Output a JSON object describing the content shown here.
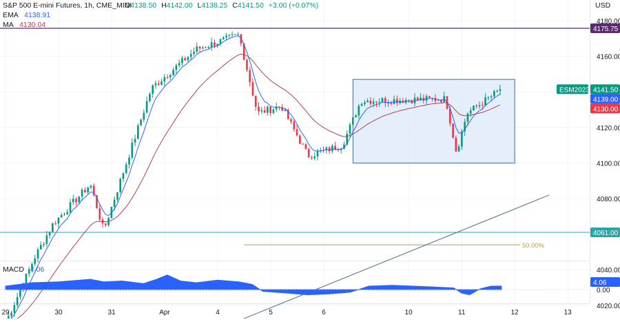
{
  "header": {
    "symbol": "S&P 500 E-mini Futures, 1h, CME_MINI",
    "ohlc": [
      {
        "label": "O",
        "value": "4138.50"
      },
      {
        "label": "H",
        "value": "4142.00"
      },
      {
        "label": "L",
        "value": "4138.25"
      },
      {
        "label": "C",
        "value": "4141.50"
      }
    ],
    "change": "+3.00 (+0.07%)",
    "ema_label": "EMA",
    "ema_value": "4138.91",
    "ma_label": "MA",
    "ma_value": "4130.04",
    "currency": "USD"
  },
  "colors": {
    "up": "#089981",
    "down": "#f23645",
    "ema": "#2962ff",
    "ma": "#b2404e",
    "macd": "#2962ff",
    "resistance": "#5b2a6e",
    "support": "#26a6a6",
    "fib": "#b99b50",
    "trendline": "#4a6f8a",
    "box_fill": "#dce9fa",
    "box_stroke": "#3d6c9e"
  },
  "chart_data": [
    {
      "type": "candlestick",
      "title": "S&P 500 E-mini Futures, 1h, CME_MINI",
      "ylabel": "USD",
      "ylim": [
        4010,
        4182
      ],
      "y_ticks": [
        "4180.00",
        "4160.00",
        "4140.00",
        "4120.00",
        "4100.00",
        "4080.00",
        "4060.00",
        "4040.00",
        "4020.00"
      ],
      "x_ticks": [
        "29",
        "30",
        "31",
        "Apr",
        "4",
        "5",
        "6",
        "10",
        "11",
        "12",
        "13"
      ],
      "segments": [
        {
          "from_day": 0,
          "to_day": 0.55,
          "from": 4010,
          "to": 4047
        },
        {
          "from_day": 0.55,
          "to_day": 0.9,
          "from": 4047,
          "to": 4066
        },
        {
          "from_day": 0.9,
          "to_day": 1.6,
          "from": 4066,
          "to": 4088
        },
        {
          "from_day": 1.6,
          "to_day": 1.85,
          "from": 4088,
          "to": 4062
        },
        {
          "from_day": 1.85,
          "to_day": 2.75,
          "from": 4062,
          "to": 4142
        },
        {
          "from_day": 2.75,
          "to_day": 3.6,
          "from": 4142,
          "to": 4164
        },
        {
          "from_day": 3.6,
          "to_day": 4.4,
          "from": 4164,
          "to": 4172
        },
        {
          "from_day": 4.4,
          "to_day": 4.75,
          "from": 4172,
          "to": 4128
        },
        {
          "from_day": 4.75,
          "to_day": 5.2,
          "from": 4128,
          "to": 4132
        },
        {
          "from_day": 5.2,
          "to_day": 5.7,
          "from": 4132,
          "to": 4104
        },
        {
          "from_day": 5.7,
          "to_day": 6.35,
          "from": 4104,
          "to": 4110
        },
        {
          "from_day": 6.35,
          "to_day": 6.7,
          "from": 4110,
          "to": 4135
        },
        {
          "from_day": 6.7,
          "to_day": 8.3,
          "from": 4135,
          "to": 4136
        },
        {
          "from_day": 8.3,
          "to_day": 8.5,
          "from": 4136,
          "to": 4106
        },
        {
          "from_day": 8.5,
          "to_day": 8.7,
          "from": 4106,
          "to": 4128
        },
        {
          "from_day": 8.7,
          "to_day": 9.35,
          "from": 4128,
          "to": 4141.5
        }
      ],
      "ema": {
        "name": "EMA",
        "current": 4138.91
      },
      "ma": {
        "name": "MA",
        "current": 4130.04
      },
      "levels": [
        {
          "name": "resistance",
          "value": 4175.75,
          "label": "4175.75"
        },
        {
          "name": "support",
          "value": 4061.0,
          "label": "4061.00"
        }
      ],
      "fib": {
        "value": 4054,
        "label": "50.00%",
        "from_day": 4.5,
        "to_day": 9.7
      },
      "trendline": {
        "from_day": 4.45,
        "from_value": 4012,
        "to_day": 10.25,
        "to_value": 4082
      },
      "range_box": {
        "from_day": 6.55,
        "to_day": 9.6,
        "top": 4147,
        "bottom": 4100
      },
      "price_tags": [
        {
          "label": "ESM2023",
          "kind": "symbol"
        },
        {
          "label": "4141.50",
          "value": 4141.5
        },
        {
          "label": "4139.00",
          "value": 4139.0
        },
        {
          "label": "4130.00",
          "value": 4130.0
        }
      ]
    },
    {
      "type": "area",
      "title": "MACD",
      "current_label": "4.06",
      "current": 4.06,
      "y_ticks": [
        "0.00"
      ],
      "points": [
        [
          0,
          4.0
        ],
        [
          0.5,
          8.0
        ],
        [
          1.0,
          9.0
        ],
        [
          1.6,
          12.0
        ],
        [
          1.85,
          9.0
        ],
        [
          2.2,
          10.0
        ],
        [
          2.6,
          7.0
        ],
        [
          2.85,
          12.0
        ],
        [
          3.05,
          17.0
        ],
        [
          3.3,
          10.0
        ],
        [
          3.6,
          8.0
        ],
        [
          4.0,
          11.0
        ],
        [
          4.4,
          9.0
        ],
        [
          4.65,
          6.0
        ],
        [
          4.85,
          -2.0
        ],
        [
          5.3,
          -4.0
        ],
        [
          5.7,
          -6.0
        ],
        [
          6.1,
          -5.0
        ],
        [
          6.5,
          -3.0
        ],
        [
          6.85,
          4.0
        ],
        [
          7.3,
          5.0
        ],
        [
          7.7,
          4.0
        ],
        [
          8.1,
          3.0
        ],
        [
          8.45,
          2.0
        ],
        [
          8.6,
          -4.0
        ],
        [
          8.75,
          -6.0
        ],
        [
          8.95,
          1.0
        ],
        [
          9.15,
          4.0
        ],
        [
          9.35,
          4.06
        ]
      ]
    }
  ]
}
